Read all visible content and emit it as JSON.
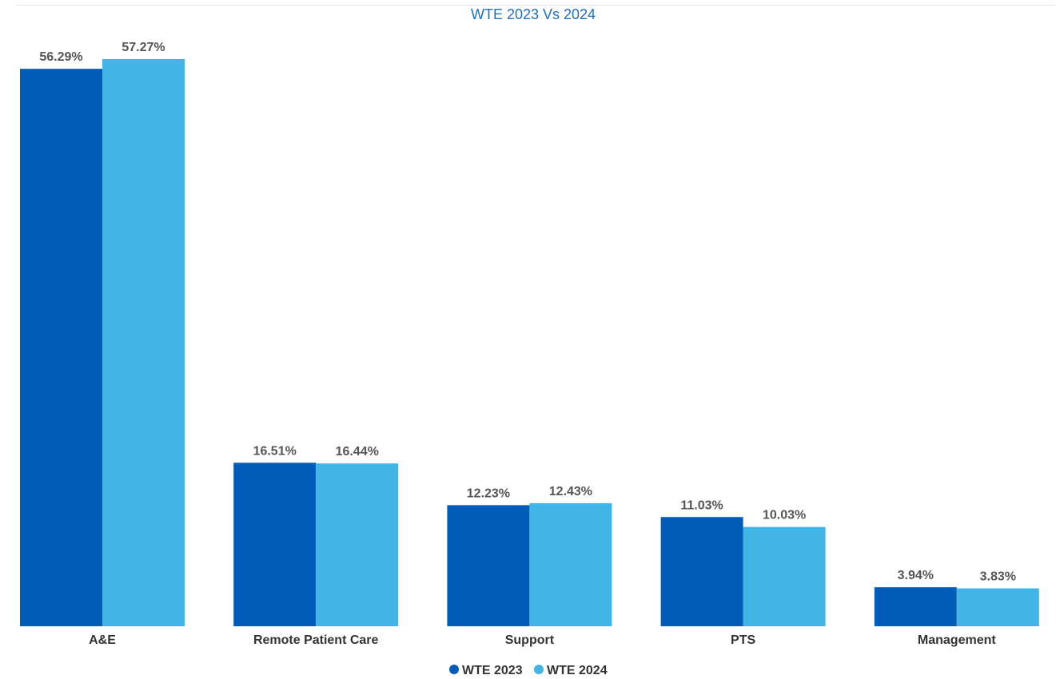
{
  "chart_data": {
    "type": "bar",
    "title": "WTE 2023 Vs 2024",
    "categories": [
      "A&E",
      "Remote Patient Care",
      "Support",
      "PTS",
      "Management"
    ],
    "series": [
      {
        "name": "WTE 2023",
        "color": "#005cb9",
        "values": [
          56.29,
          16.51,
          12.23,
          11.03,
          3.94
        ],
        "labels": [
          "56.29%",
          "16.51%",
          "12.23%",
          "11.03%",
          "3.94%"
        ]
      },
      {
        "name": "WTE 2024",
        "color": "#41b6e6",
        "values": [
          57.27,
          16.44,
          12.43,
          10.03,
          3.83
        ],
        "labels": [
          "57.27%",
          "16.44%",
          "12.43%",
          "10.03%",
          "3.83%"
        ]
      }
    ],
    "ylim": [
      0,
      57.27
    ],
    "grid": false,
    "legend_position": "bottom"
  }
}
